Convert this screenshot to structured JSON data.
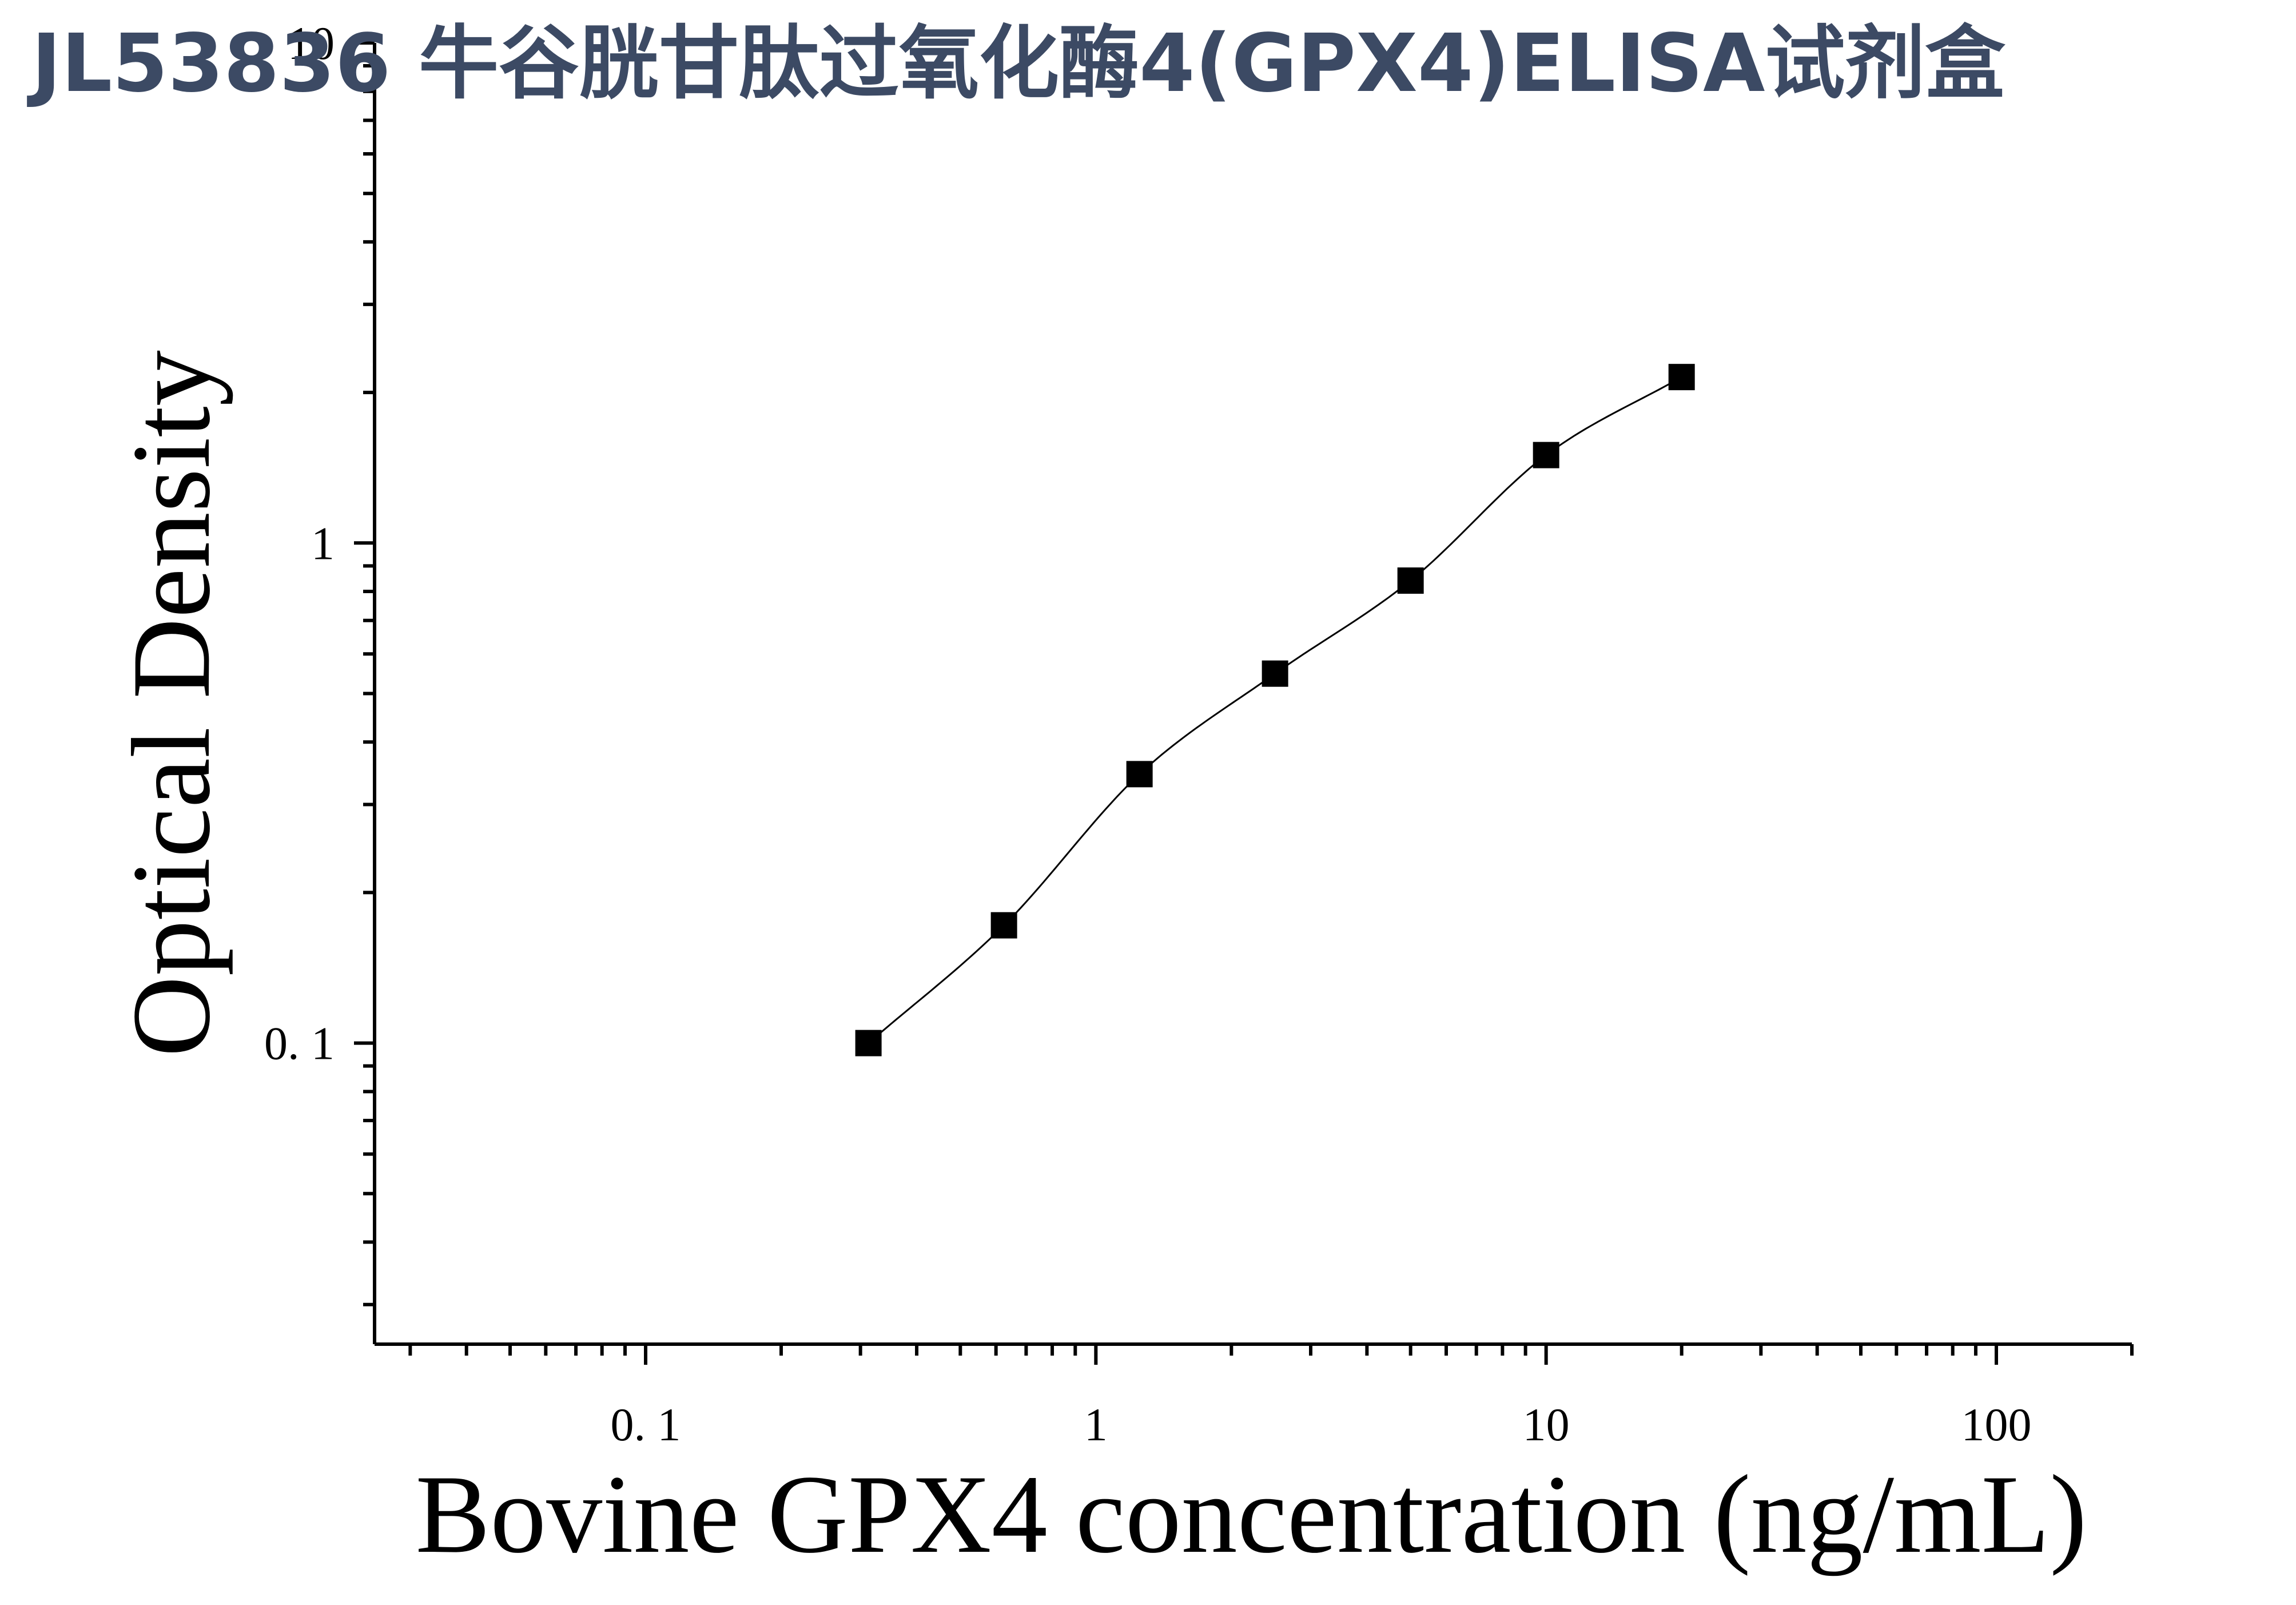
{
  "title": "JL53836 牛谷胱甘肽过氧化酶4(GPX4)ELISA试剂盒",
  "chart_data": {
    "type": "scatter",
    "title": "JL53836 牛谷胱甘肽过氧化酶4(GPX4)ELISA试剂盒",
    "xlabel": "Bovine GPX4 concentration (ng/mL)",
    "ylabel": "Optical Density",
    "x_scale": "log",
    "y_scale": "log",
    "xlim": [
      0.025,
      200
    ],
    "ylim": [
      0.025,
      10
    ],
    "x_tick_labels": [
      "0. 1",
      "1",
      "10",
      "100"
    ],
    "y_tick_labels": [
      "0. 1",
      "1",
      "10"
    ],
    "grid": false,
    "marker": "square",
    "fit_curve": true,
    "colors": {
      "title": "#3c4a64",
      "marks": "#000000"
    },
    "series": [
      {
        "x": [
          0.3125,
          0.625,
          1.25,
          2.5,
          5,
          10,
          20
        ],
        "y": [
          0.1,
          0.172,
          0.345,
          0.548,
          0.841,
          1.499,
          2.147
        ]
      }
    ]
  }
}
